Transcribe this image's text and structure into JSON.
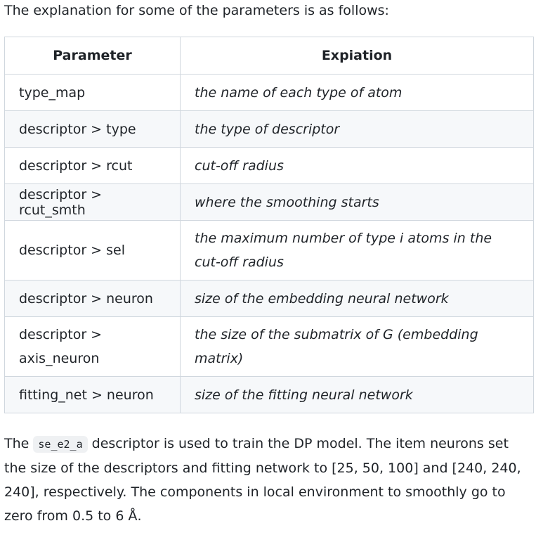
{
  "intro": "The explanation for some of the parameters is as follows:",
  "table": {
    "headers": [
      "Parameter",
      "Expiation"
    ],
    "rows": [
      {
        "param": "type_map",
        "desc": "the name of each type of atom"
      },
      {
        "param": "descriptor > type",
        "desc": "the type of descriptor"
      },
      {
        "param": "descriptor > rcut",
        "desc": "cut-off radius"
      },
      {
        "param": "descriptor > rcut_smth",
        "desc": "where the smoothing starts"
      },
      {
        "param": "descriptor > sel",
        "desc": "the maximum number of type i atoms in the cut-off radius"
      },
      {
        "param": "descriptor > neuron",
        "desc": "size of the embedding neural network"
      },
      {
        "param": "descriptor > axis_neuron",
        "desc": "the size of the submatrix of G (embedding matrix)"
      },
      {
        "param": "fitting_net > neuron",
        "desc": "size of the fitting neural network"
      }
    ]
  },
  "outro": {
    "before": "The ",
    "code": "se_e2_a",
    "after": " descriptor is used to train the DP model. The item neurons set the size of the descriptors and fitting network to [25, 50, 100] and [240, 240, 240], respectively. The components in local environment to smoothly go to zero from 0.5 to 6 Å."
  }
}
